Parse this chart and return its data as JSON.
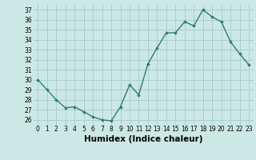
{
  "xlabel": "Humidex (Indice chaleur)",
  "x": [
    0,
    1,
    2,
    3,
    4,
    5,
    6,
    7,
    8,
    9,
    10,
    11,
    12,
    13,
    14,
    15,
    16,
    17,
    18,
    19,
    20,
    21,
    22,
    23
  ],
  "y": [
    30,
    29,
    28,
    27.2,
    27.3,
    26.8,
    26.3,
    26.0,
    25.9,
    27.3,
    29.5,
    28.5,
    31.6,
    33.2,
    34.7,
    34.7,
    35.8,
    35.4,
    37.0,
    36.3,
    35.8,
    33.8,
    32.6,
    31.5
  ],
  "line_color": "#2e7d6e",
  "marker": "D",
  "marker_size": 1.8,
  "bg_color": "#cce8e4",
  "grid_color": "#aacfcc",
  "ylim": [
    25.5,
    37.5
  ],
  "yticks": [
    26,
    27,
    28,
    29,
    30,
    31,
    32,
    33,
    34,
    35,
    36,
    37
  ],
  "xticks": [
    0,
    1,
    2,
    3,
    4,
    5,
    6,
    7,
    8,
    9,
    10,
    11,
    12,
    13,
    14,
    15,
    16,
    17,
    18,
    19,
    20,
    21,
    22,
    23
  ],
  "tick_fontsize": 5.5,
  "xlabel_fontsize": 7.5,
  "line_width": 1.0
}
